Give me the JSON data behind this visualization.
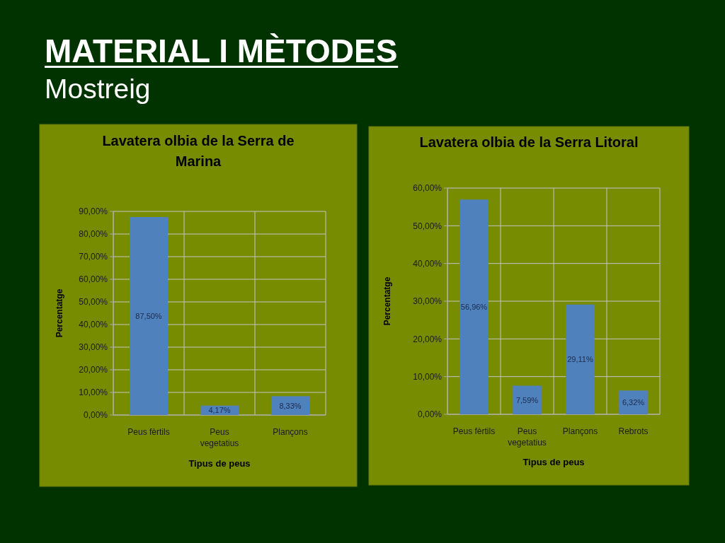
{
  "chart_data": [
    {
      "type": "other",
      "title": "MATERIAL I MÈTODES",
      "subtitle": "Mostreig"
    },
    {
      "type": "bar",
      "title": "Lavatera olbia de la Serra de Marina",
      "xlabel": "Tipus de peus",
      "ylabel": "Percentatge",
      "categories": [
        "Peus fèrtils",
        "Peus vegetatius",
        "Plançons"
      ],
      "values": [
        87.5,
        4.17,
        8.33
      ],
      "color": "#4f81bd",
      "value_labels": [
        "87,50%",
        "4,17%",
        "8,33%"
      ],
      "ylim": [
        0,
        90
      ],
      "yticks": [
        {
          "value": 0,
          "label": "0,00%"
        },
        {
          "value": 10,
          "label": "10,00%"
        },
        {
          "value": 20,
          "label": "20,00%"
        },
        {
          "value": 30,
          "label": "30,00%"
        },
        {
          "value": 40,
          "label": "40,00%"
        },
        {
          "value": 50,
          "label": "50,00%"
        },
        {
          "value": 60,
          "label": "60,00%"
        },
        {
          "value": 70,
          "label": "70,00%"
        },
        {
          "value": 80,
          "label": "80,00%"
        },
        {
          "value": 90,
          "label": "90,00%"
        }
      ],
      "grid": true
    },
    {
      "type": "bar",
      "title": "Lavatera olbia de la Serra Litoral",
      "xlabel": "Tipus de peus",
      "ylabel": "Percentatge",
      "categories": [
        "Peus fèrtils",
        "Peus vegetatius",
        "Plançons",
        "Rebrots"
      ],
      "values": [
        56.96,
        7.59,
        29.11,
        6.32
      ],
      "color": "#4f81bd",
      "value_labels": [
        "56,96%",
        "7,59%",
        "29,11%",
        "6,32%"
      ],
      "ylim": [
        0,
        60
      ],
      "yticks": [
        {
          "value": 0,
          "label": "0,00%"
        },
        {
          "value": 10,
          "label": "10,00%"
        },
        {
          "value": 20,
          "label": "20,00%"
        },
        {
          "value": 30,
          "label": "30,00%"
        },
        {
          "value": 40,
          "label": "40,00%"
        },
        {
          "value": 50,
          "label": "50,00%"
        },
        {
          "value": 60,
          "label": "60,00%"
        }
      ],
      "grid": true
    }
  ]
}
